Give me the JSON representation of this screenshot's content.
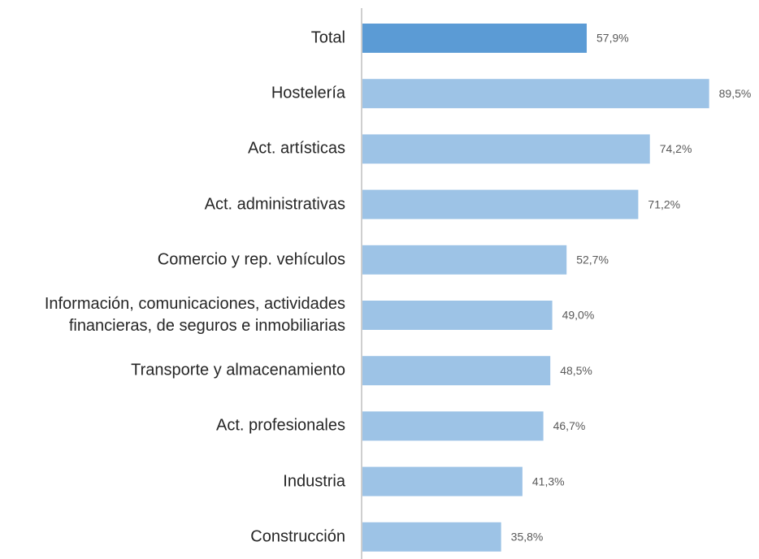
{
  "chart_data": {
    "type": "barh",
    "categories": [
      "Total",
      "Hostelería",
      "Act. artísticas",
      "Act. administrativas",
      "Comercio y rep. vehículos",
      "Información, comunicaciones, actividades\nfinancieras, de seguros e inmobiliarias",
      "Transporte y almacenamiento",
      "Act. profesionales",
      "Industria",
      "Construcción"
    ],
    "values": [
      57.9,
      89.5,
      74.2,
      71.2,
      52.7,
      49.0,
      48.5,
      46.7,
      41.3,
      35.8
    ],
    "value_labels": [
      "57,9%",
      "89,5%",
      "74,2%",
      "71,2%",
      "52,7%",
      "49,0%",
      "48,5%",
      "46,7%",
      "41,3%",
      "35,8%"
    ],
    "colors": [
      "#5b9bd5",
      "#9dc3e6",
      "#9dc3e6",
      "#9dc3e6",
      "#9dc3e6",
      "#9dc3e6",
      "#9dc3e6",
      "#9dc3e6",
      "#9dc3e6",
      "#9dc3e6"
    ],
    "xlim": [
      0,
      100
    ]
  }
}
